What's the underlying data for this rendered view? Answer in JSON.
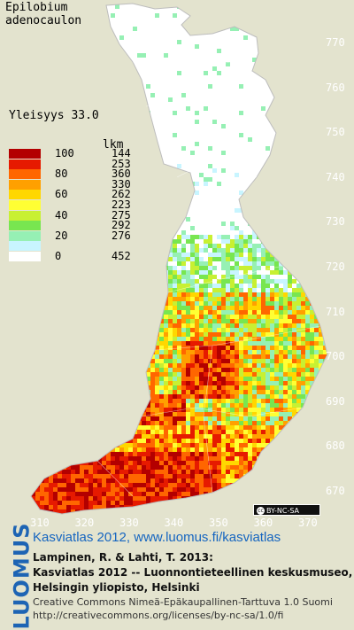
{
  "title": "Epilobium\nadenocaulon",
  "frequency_label": "Yleisyys",
  "frequency_value": "33.0",
  "legend": {
    "count_header": "lkm",
    "rows": [
      {
        "pct": "100",
        "count": "144",
        "color": "#b30000"
      },
      {
        "pct": "",
        "count": "253",
        "color": "#e61a00"
      },
      {
        "pct": "80",
        "count": "360",
        "color": "#ff6600"
      },
      {
        "pct": "",
        "count": "330",
        "color": "#ffa000"
      },
      {
        "pct": "60",
        "count": "262",
        "color": "#ffd700"
      },
      {
        "pct": "",
        "count": "223",
        "color": "#ffff33"
      },
      {
        "pct": "40",
        "count": "275",
        "color": "#c8f032"
      },
      {
        "pct": "",
        "count": "292",
        "color": "#78e650"
      },
      {
        "pct": "20",
        "count": "276",
        "color": "#96f0b4"
      },
      {
        "pct": "",
        "count": "",
        "color": "#c8f5ff"
      },
      {
        "pct": "0",
        "count": "452",
        "color": "#ffffff"
      }
    ]
  },
  "y_axis_labels": [
    "770",
    "760",
    "750",
    "740",
    "730",
    "720",
    "710",
    "700",
    "690",
    "680",
    "670"
  ],
  "x_axis_labels": [
    "310",
    "320",
    "330",
    "340",
    "350",
    "360",
    "370"
  ],
  "badge": "BY-NC-SA",
  "brand": "LUOMUS",
  "atlas_link": "Kasviatlas 2012, www.luomus.fi/kasviatlas",
  "citation": [
    "Lampinen, R. & Lahti, T. 2013:",
    "Kasviatlas 2012 -- Luonnontieteellinen keskusmuseo,",
    "Helsingin yliopisto, Helsinki"
  ],
  "license": [
    "Creative Commons Nimeä-Epäkaupallinen-Tarttuva 1.0 Suomi",
    "http://creativecommons.org/licenses/by-nc-sa/1.0/fi"
  ]
}
